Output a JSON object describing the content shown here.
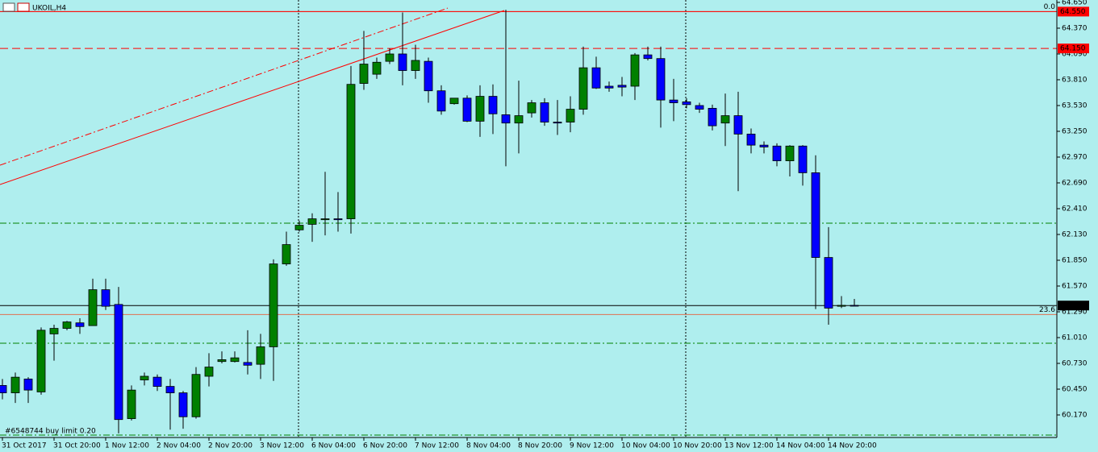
{
  "chart_data": {
    "type": "candlestick",
    "title": "UKOIL,H4",
    "annotation": "#6548744 buy limit 0.20",
    "categories": [
      "31 Oct 2017",
      null,
      null,
      null,
      "31 Oct 20:00",
      null,
      null,
      null,
      "1 Nov 12:00",
      null,
      null,
      null,
      "2 Nov 04:00",
      null,
      null,
      null,
      "2 Nov 20:00",
      null,
      null,
      null,
      "3 Nov 12:00",
      null,
      null,
      null,
      "6 Nov 04:00",
      null,
      null,
      null,
      "6 Nov 20:00",
      null,
      null,
      null,
      "7 Nov 12:00",
      null,
      null,
      null,
      "8 Nov 04:00",
      null,
      null,
      null,
      "8 Nov 20:00",
      null,
      null,
      null,
      "9 Nov 12:00",
      null,
      null,
      null,
      "10 Nov 04:00",
      null,
      null,
      null,
      "10 Nov 20:00",
      null,
      null,
      null,
      "13 Nov 12:00",
      null,
      null,
      null,
      "14 Nov 04:00",
      null,
      null,
      null,
      "14 Nov 20:00",
      null,
      null
    ],
    "open": [
      60.49,
      60.41,
      60.56,
      60.42,
      61.05,
      61.11,
      61.17,
      61.14,
      61.53,
      61.37,
      60.13,
      60.55,
      60.58,
      60.48,
      60.41,
      60.15,
      60.59,
      60.75,
      60.75,
      60.74,
      60.72,
      60.91,
      61.81,
      62.18,
      62.24,
      62.29,
      62.3,
      62.3,
      63.77,
      63.87,
      64.01,
      64.09,
      63.91,
      64.01,
      63.69,
      63.55,
      63.61,
      63.36,
      63.63,
      63.43,
      63.34,
      63.45,
      63.56,
      63.35,
      63.35,
      63.49,
      63.94,
      63.74,
      63.75,
      63.74,
      64.08,
      64.04,
      63.59,
      63.57,
      63.53,
      63.5,
      63.34,
      63.42,
      63.22,
      63.1,
      63.09,
      62.93,
      63.09,
      62.8,
      61.88,
      61.35,
      61.36
    ],
    "high": [
      60.56,
      60.63,
      60.58,
      61.12,
      61.15,
      61.19,
      61.22,
      61.65,
      61.65,
      61.56,
      60.49,
      60.63,
      60.61,
      60.56,
      60.43,
      60.69,
      60.84,
      60.86,
      60.86,
      61.09,
      61.05,
      61.86,
      62.16,
      62.28,
      62.36,
      62.81,
      62.59,
      63.96,
      64.34,
      64.05,
      64.15,
      64.54,
      64.19,
      64.05,
      63.75,
      63.61,
      63.64,
      63.75,
      63.76,
      64.57,
      63.8,
      63.59,
      63.61,
      63.59,
      63.63,
      64.17,
      64.06,
      63.79,
      63.84,
      64.1,
      64.17,
      64.17,
      63.82,
      63.61,
      63.56,
      63.54,
      63.66,
      63.68,
      63.28,
      63.14,
      63.12,
      63.1,
      63.1,
      62.99,
      62.21,
      61.46,
      61.43
    ],
    "low": [
      60.34,
      60.3,
      60.3,
      60.39,
      60.76,
      61.09,
      61.05,
      61.14,
      61.31,
      59.97,
      60.11,
      60.49,
      60.43,
      60.01,
      60.02,
      60.13,
      60.48,
      60.73,
      60.74,
      60.61,
      60.56,
      60.54,
      61.79,
      62.16,
      62.05,
      62.12,
      62.16,
      62.14,
      63.7,
      63.82,
      63.98,
      63.75,
      63.82,
      63.56,
      63.43,
      63.54,
      63.35,
      63.19,
      63.22,
      62.87,
      63.01,
      63.4,
      63.31,
      63.21,
      63.24,
      63.43,
      63.71,
      63.68,
      63.63,
      63.59,
      64.02,
      63.29,
      63.36,
      63.5,
      63.45,
      63.26,
      63.09,
      62.6,
      63.01,
      63.01,
      62.87,
      62.76,
      62.66,
      61.32,
      61.15,
      61.33,
      61.35
    ],
    "close": [
      60.41,
      60.58,
      60.44,
      61.09,
      61.11,
      61.18,
      61.13,
      61.53,
      61.35,
      60.12,
      60.44,
      60.59,
      60.48,
      60.41,
      60.15,
      60.61,
      60.69,
      60.77,
      60.79,
      60.71,
      60.91,
      61.81,
      62.02,
      62.23,
      62.3,
      62.3,
      62.29,
      63.76,
      63.98,
      64.0,
      64.09,
      63.91,
      64.02,
      63.69,
      63.47,
      63.61,
      63.36,
      63.63,
      63.44,
      63.34,
      63.42,
      63.56,
      63.35,
      63.34,
      63.49,
      63.94,
      63.72,
      63.72,
      63.73,
      64.08,
      64.04,
      63.59,
      63.56,
      63.54,
      63.49,
      63.31,
      63.42,
      63.22,
      63.1,
      63.08,
      62.93,
      63.09,
      62.8,
      61.88,
      61.33,
      61.36,
      61.358
    ],
    "colors": {
      "up": "#008000",
      "down": "#0000ff",
      "wick": "#000000",
      "background": "#afeeee"
    },
    "ylim": [
      59.925,
      64.676
    ],
    "yticks": [
      {
        "value": 64.65,
        "label": "64.650"
      },
      {
        "value": 64.37,
        "label": "64.370"
      },
      {
        "value": 64.09,
        "label": "64.090"
      },
      {
        "value": 63.81,
        "label": "63.810"
      },
      {
        "value": 63.53,
        "label": "63.530"
      },
      {
        "value": 63.25,
        "label": "63.250"
      },
      {
        "value": 62.97,
        "label": "62.970"
      },
      {
        "value": 62.69,
        "label": "62.690"
      },
      {
        "value": 62.41,
        "label": "62.410"
      },
      {
        "value": 62.13,
        "label": "62.130"
      },
      {
        "value": 61.85,
        "label": "61.850"
      },
      {
        "value": 61.57,
        "label": "61.570"
      },
      {
        "value": 61.29,
        "label": "61.290"
      },
      {
        "value": 61.01,
        "label": "61.010"
      },
      {
        "value": 60.73,
        "label": "60.730"
      },
      {
        "value": 60.45,
        "label": "60.450"
      },
      {
        "value": 60.17,
        "label": "60.170"
      }
    ],
    "levels": [
      {
        "value": 64.55,
        "label": "64.550",
        "color": "#ff0000",
        "style": "solid"
      },
      {
        "value": 64.15,
        "label": "64.150",
        "color": "#ff0000",
        "style": "dashed"
      },
      {
        "value": 61.358,
        "label": "61.358",
        "color": "#000000",
        "style": "solid"
      }
    ],
    "fib_levels": [
      {
        "value": 64.55,
        "label": "0.0"
      },
      {
        "value": 61.26,
        "label": "23.6"
      }
    ],
    "grid": false
  }
}
